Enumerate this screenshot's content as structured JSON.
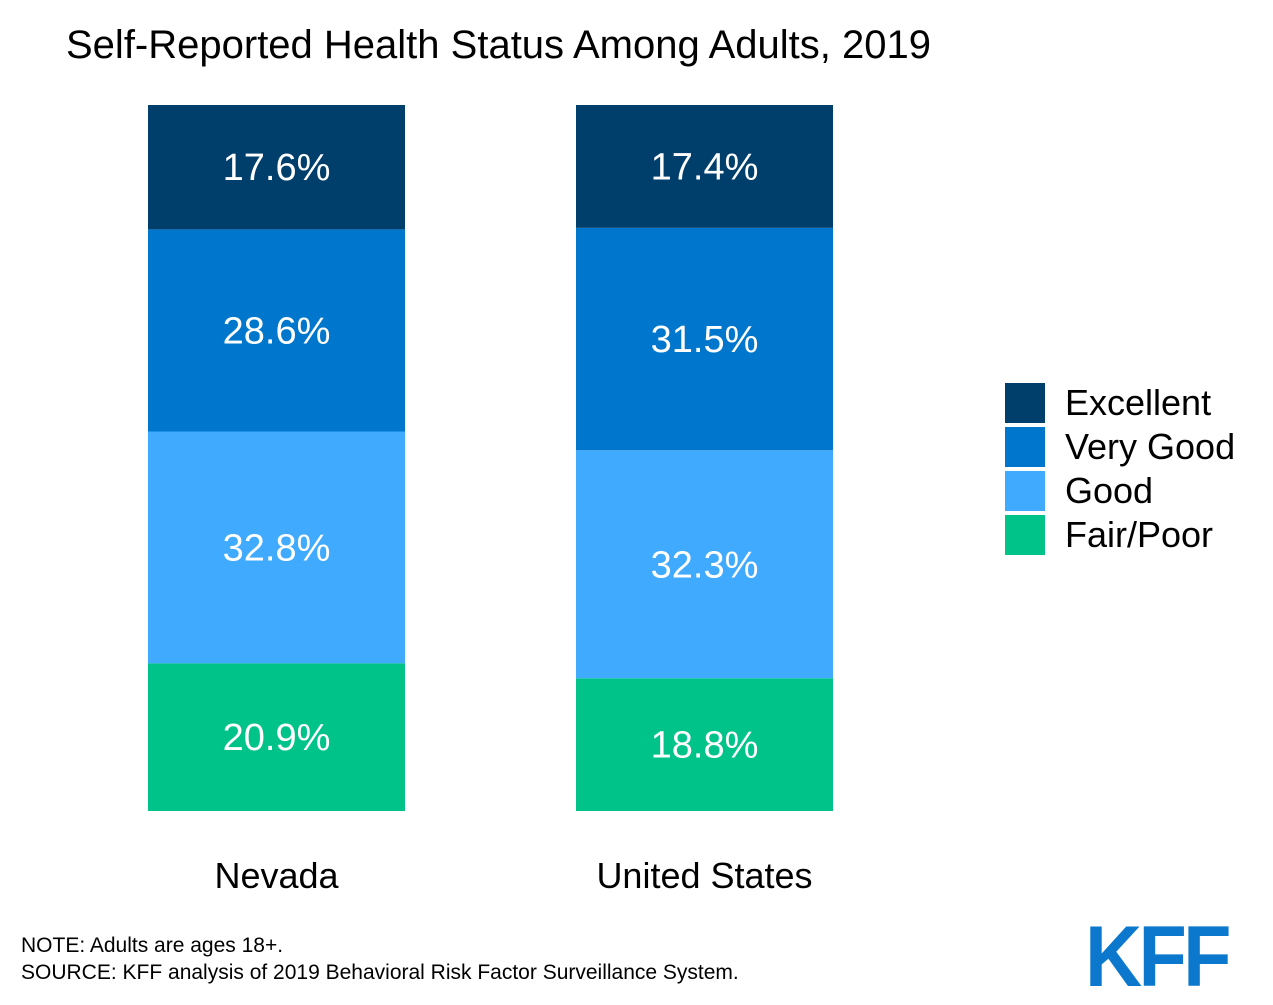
{
  "title": "Self-Reported Health Status Among Adults, 2019",
  "chart_data": {
    "type": "bar",
    "stacked": true,
    "title": "Self-Reported Health Status Among Adults, 2019",
    "categories": [
      "Nevada",
      "United States"
    ],
    "series": [
      {
        "name": "Fair/Poor",
        "values": [
          20.9,
          18.8
        ],
        "labels": [
          "20.9%",
          "18.8%"
        ],
        "color": "#00C389"
      },
      {
        "name": "Good",
        "values": [
          32.8,
          32.3
        ],
        "labels": [
          "32.8%",
          "32.3%"
        ],
        "color": "#40AAFF"
      },
      {
        "name": "Very Good",
        "values": [
          28.6,
          31.5
        ],
        "labels": [
          "28.6%",
          "31.5%"
        ],
        "color": "#0077CC"
      },
      {
        "name": "Excellent",
        "values": [
          17.6,
          17.4
        ],
        "labels": [
          "17.6%",
          "17.4%"
        ],
        "color": "#003F6B"
      }
    ],
    "value_unit": "%",
    "grid": false,
    "legend": "right"
  },
  "legend": [
    {
      "label": "Excellent",
      "color": "#003F6B"
    },
    {
      "label": "Very Good",
      "color": "#0077CC"
    },
    {
      "label": "Good",
      "color": "#40AAFF"
    },
    {
      "label": "Fair/Poor",
      "color": "#00C389"
    }
  ],
  "notes": {
    "note": "NOTE: Adults are ages 18+.",
    "source": "SOURCE: KFF analysis of 2019 Behavioral Risk Factor Surveillance System."
  },
  "logo": {
    "text": "KFF",
    "color": "#0B78CE"
  }
}
